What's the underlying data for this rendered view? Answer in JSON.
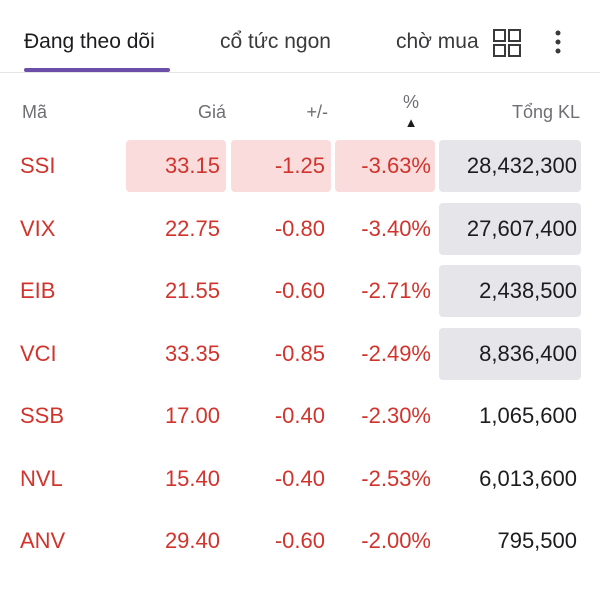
{
  "tabs": [
    {
      "label": "Đang theo dõi",
      "active": true
    },
    {
      "label": "cổ tức ngon",
      "active": false
    },
    {
      "label": "chờ mua",
      "active": false
    }
  ],
  "icons": {
    "grid": "grid-icon",
    "more": "more-vertical-icon"
  },
  "accent_color": "#6b4ea8",
  "header": {
    "symbol": "Mã",
    "price": "Giá",
    "change": "+/-",
    "percent": "%",
    "sort_indicator": "▲",
    "volume": "Tổng KL"
  },
  "rows": [
    {
      "symbol": "SSI",
      "price": "33.15",
      "change": "-1.25",
      "percent": "-3.63%",
      "volume": "28,432,300"
    },
    {
      "symbol": "VIX",
      "price": "22.75",
      "change": "-0.80",
      "percent": "-3.40%",
      "volume": "27,607,400"
    },
    {
      "symbol": "EIB",
      "price": "21.55",
      "change": "-0.60",
      "percent": "-2.71%",
      "volume": "2,438,500"
    },
    {
      "symbol": "VCI",
      "price": "33.35",
      "change": "-0.85",
      "percent": "-2.49%",
      "volume": "8,836,400"
    },
    {
      "symbol": "SSB",
      "price": "17.00",
      "change": "-0.40",
      "percent": "-2.30%",
      "volume": "1,065,600"
    },
    {
      "symbol": "NVL",
      "price": "15.40",
      "change": "-0.40",
      "percent": "-2.53%",
      "volume": "6,013,600"
    },
    {
      "symbol": "ANV",
      "price": "29.40",
      "change": "-0.60",
      "percent": "-2.00%",
      "volume": "795,500"
    }
  ],
  "colors": {
    "down": "#d0342c",
    "highlight_red": "#fadcdc",
    "highlight_gray": "#e5e5ea"
  }
}
